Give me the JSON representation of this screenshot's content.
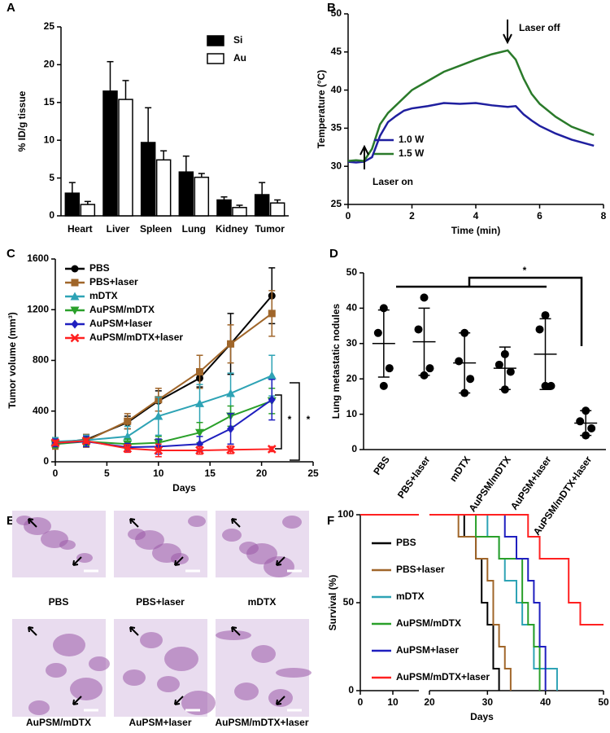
{
  "chart_data": [
    {
      "panel": "A",
      "type": "bar",
      "ylabel": "% ID/g tissue",
      "categories": [
        "Heart",
        "Liver",
        "Spleen",
        "Lung",
        "Kidney",
        "Tumor"
      ],
      "series": [
        {
          "name": "Si",
          "color": "#000000",
          "values": [
            3.0,
            16.5,
            9.7,
            5.8,
            2.1,
            2.8
          ],
          "errors": [
            1.4,
            3.9,
            4.6,
            2.1,
            0.4,
            1.6
          ]
        },
        {
          "name": "Au",
          "color": "#ffffff",
          "values": [
            1.5,
            15.4,
            7.4,
            5.1,
            1.1,
            1.7
          ],
          "errors": [
            0.4,
            2.5,
            1.2,
            0.5,
            0.3,
            0.4
          ]
        }
      ],
      "ylim": [
        0,
        25
      ],
      "yticks": [
        0,
        5,
        10,
        15,
        20,
        25
      ],
      "legend": "upper right"
    },
    {
      "panel": "B",
      "type": "line",
      "xlabel": "Time (min)",
      "ylabel": "Temperature (°C)",
      "x": [
        0,
        0.25,
        0.5,
        0.75,
        1,
        1.25,
        1.5,
        1.75,
        2,
        2.5,
        3,
        3.5,
        4,
        4.5,
        5,
        5.25,
        5.5,
        5.75,
        6,
        6.5,
        7,
        7.7
      ],
      "series": [
        {
          "name": "1.0 W",
          "color": "#1f1f9f",
          "values": [
            30.6,
            30.5,
            30.6,
            31.2,
            34,
            35.8,
            36.6,
            37.3,
            37.6,
            37.9,
            38.3,
            38.2,
            38.3,
            38.0,
            37.8,
            37.9,
            36.8,
            36,
            35.3,
            34.3,
            33.5,
            32.7
          ]
        },
        {
          "name": "1.5 W",
          "color": "#2a7a2a",
          "values": [
            30.7,
            30.8,
            30.7,
            32.3,
            35.5,
            37,
            38,
            39,
            40,
            41.2,
            42.4,
            43.2,
            44,
            44.7,
            45.2,
            44,
            41.5,
            39.5,
            38.2,
            36.5,
            35.2,
            34.1
          ]
        }
      ],
      "xlim": [
        0,
        8
      ],
      "xticks": [
        0,
        2,
        4,
        6,
        8
      ],
      "ylim": [
        25,
        50
      ],
      "yticks": [
        25,
        30,
        35,
        40,
        45,
        50
      ],
      "legend": "lower left",
      "annotations": [
        "Laser on",
        "Laser off"
      ]
    },
    {
      "panel": "C",
      "type": "line",
      "xlabel": "Days",
      "ylabel": "Tumor volume (mm³)",
      "markers": true,
      "x": [
        0,
        3,
        7,
        10,
        14,
        17,
        21
      ],
      "series": [
        {
          "name": "PBS",
          "color": "#000000",
          "marker": "circle",
          "values": [
            150,
            175,
            310,
            480,
            660,
            930,
            1310
          ],
          "errors": [
            40,
            40,
            50,
            80,
            70,
            240,
            220
          ]
        },
        {
          "name": "PBS+laser",
          "color": "#a0662a",
          "marker": "square",
          "values": [
            140,
            165,
            320,
            490,
            710,
            930,
            1170
          ],
          "errors": [
            40,
            50,
            60,
            90,
            130,
            150,
            180
          ]
        },
        {
          "name": "mDTX",
          "color": "#2ea3b5",
          "marker": "triangle-up",
          "values": [
            160,
            170,
            200,
            360,
            460,
            540,
            680
          ],
          "errors": [
            30,
            40,
            80,
            150,
            150,
            160,
            160
          ]
        },
        {
          "name": "AuPSM/mDTX",
          "color": "#2aa02a",
          "marker": "triangle-down",
          "values": [
            140,
            160,
            140,
            150,
            230,
            360,
            480
          ],
          "errors": [
            30,
            30,
            40,
            50,
            80,
            80,
            100
          ]
        },
        {
          "name": "AuPSM+laser",
          "color": "#1f1fbf",
          "marker": "diamond",
          "values": [
            150,
            160,
            115,
            120,
            140,
            260,
            490
          ],
          "errors": [
            30,
            40,
            30,
            60,
            60,
            120,
            160
          ]
        },
        {
          "name": "AuPSM/mDTX+laser",
          "color": "#ff2020",
          "marker": "cross",
          "values": [
            150,
            165,
            105,
            90,
            90,
            95,
            100
          ],
          "errors": [
            20,
            20,
            30,
            50,
            30,
            30,
            20
          ]
        }
      ],
      "xlim": [
        0,
        25
      ],
      "xticks": [
        0,
        5,
        10,
        15,
        20,
        25
      ],
      "ylim": [
        0,
        1600
      ],
      "yticks": [
        0,
        400,
        800,
        1200,
        1600
      ],
      "legend": "upper left",
      "annotations": [
        "*",
        "*"
      ]
    },
    {
      "panel": "D",
      "type": "dot",
      "ylabel": "Lung metastatic nodules",
      "categories": [
        "PBS",
        "PBS+laser",
        "mDTX",
        "AuPSM/mDTX",
        "AuPSM+laser",
        "AuPSM/mDTX+laser"
      ],
      "points": [
        [
          40,
          33,
          23,
          18
        ],
        [
          43,
          34,
          23,
          21
        ],
        [
          33,
          25,
          20,
          16
        ],
        [
          27,
          24,
          22,
          17
        ],
        [
          38,
          34,
          18,
          18
        ],
        [
          11,
          8,
          6,
          4
        ]
      ],
      "means": [
        30,
        30.5,
        24.5,
        23,
        27,
        7.5
      ],
      "sds": [
        9.5,
        9.5,
        8.5,
        6,
        10,
        3.5
      ],
      "ylim": [
        0,
        50
      ],
      "yticks": [
        0,
        10,
        20,
        30,
        40,
        50
      ],
      "annotations": [
        "*"
      ]
    },
    {
      "panel": "F",
      "type": "survival",
      "xlabel": "Days",
      "ylabel": "Survival (%)",
      "xbreak": [
        18,
        20
      ],
      "series": [
        {
          "name": "PBS",
          "color": "#000000",
          "x": [
            0,
            26,
            28,
            29,
            30,
            31,
            32
          ],
          "values": [
            100,
            87.5,
            75,
            50,
            37.5,
            12.5,
            0
          ]
        },
        {
          "name": "PBS+laser",
          "color": "#a0662a",
          "x": [
            0,
            25,
            28,
            30,
            31,
            32,
            33,
            34
          ],
          "values": [
            100,
            87.5,
            75,
            62.5,
            37.5,
            25,
            12.5,
            0
          ]
        },
        {
          "name": "mDTX",
          "color": "#2ea3b5",
          "x": [
            0,
            30,
            32,
            33,
            35,
            36,
            38,
            42
          ],
          "values": [
            100,
            87.5,
            75,
            62.5,
            50,
            37.5,
            12.5,
            0
          ]
        },
        {
          "name": "AuPSM/mDTX",
          "color": "#2aa02a",
          "x": [
            0,
            28,
            32,
            36,
            37,
            38,
            39
          ],
          "values": [
            100,
            87.5,
            75,
            50,
            37.5,
            25,
            0
          ]
        },
        {
          "name": "AuPSM+laser",
          "color": "#1f1fbf",
          "x": [
            0,
            33,
            35,
            37,
            38,
            39,
            40
          ],
          "values": [
            100,
            87.5,
            75,
            62.5,
            50,
            25,
            0
          ]
        },
        {
          "name": "AuPSM/mDTX+laser",
          "color": "#ff2020",
          "x": [
            0,
            37,
            39,
            44,
            46,
            50
          ],
          "values": [
            100,
            87.5,
            75,
            50,
            37.5,
            37.5
          ]
        }
      ],
      "xlim": [
        0,
        50
      ],
      "xticks": [
        0,
        10,
        20,
        30,
        40,
        50
      ],
      "ylim": [
        0,
        100
      ],
      "yticks": [
        0,
        50,
        100
      ],
      "legend": "lower left"
    }
  ],
  "figure_e": {
    "panel": "E",
    "captions": [
      "PBS",
      "PBS+laser",
      "mDTX",
      "AuPSM/mDTX",
      "AuPSM+laser",
      "AuPSM/mDTX+laser"
    ]
  }
}
